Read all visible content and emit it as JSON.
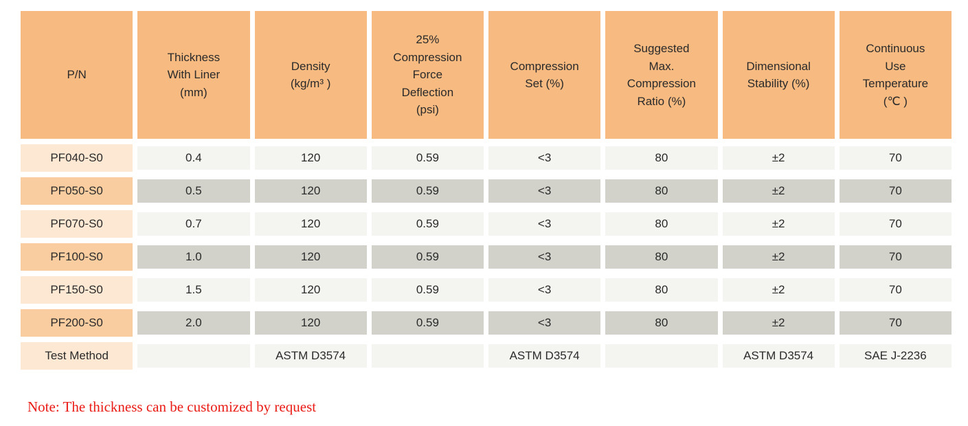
{
  "colors": {
    "page_bg": "#FFFFFF",
    "header_bg": "#F7BA81",
    "pn_odd_bg": "#FDE8D3",
    "pn_even_bg": "#F9CDA0",
    "cell_odd_bg": "#F4F4F0",
    "cell_even_bg": "#D2D2CB",
    "note_red": "#EA1A14",
    "text": "#2A2A2A"
  },
  "table": {
    "headers": [
      {
        "id": "pn",
        "label": "P/N"
      },
      {
        "id": "thickness-with-liner",
        "label": "Thickness\nWith Liner\n(mm)"
      },
      {
        "id": "density",
        "label": "Density\n(kg/m³ )"
      },
      {
        "id": "compression-force-deflection",
        "label": "25%\nCompression\nForce\nDeflection\n(psi)"
      },
      {
        "id": "compression-set",
        "label": "Compression\nSet (%)"
      },
      {
        "id": "suggested-max-compression-ratio",
        "label": "Suggested\nMax.\nCompression\nRatio (%)"
      },
      {
        "id": "dimensional-stability",
        "label": "Dimensional\nStability (%)"
      },
      {
        "id": "continuous-use-temperature",
        "label": "Continuous\nUse\nTemperature\n(℃ )"
      }
    ],
    "rows": [
      {
        "pn": "PF040-S0",
        "shade": "odd",
        "cells": [
          "0.4",
          "120",
          "0.59",
          "<3",
          "80",
          "±2",
          "70"
        ]
      },
      {
        "pn": "PF050-S0",
        "shade": "even",
        "cells": [
          "0.5",
          "120",
          "0.59",
          "<3",
          "80",
          "±2",
          "70"
        ]
      },
      {
        "pn": "PF070-S0",
        "shade": "odd",
        "cells": [
          "0.7",
          "120",
          "0.59",
          "<3",
          "80",
          "±2",
          "70"
        ]
      },
      {
        "pn": "PF100-S0",
        "shade": "even",
        "cells": [
          "1.0",
          "120",
          "0.59",
          "<3",
          "80",
          "±2",
          "70"
        ]
      },
      {
        "pn": "PF150-S0",
        "shade": "odd",
        "cells": [
          "1.5",
          "120",
          "0.59",
          "<3",
          "80",
          "±2",
          "70"
        ]
      },
      {
        "pn": "PF200-S0",
        "shade": "even",
        "cells": [
          "2.0",
          "120",
          "0.59",
          "<3",
          "80",
          "±2",
          "70"
        ]
      },
      {
        "pn": "Test Method",
        "shade": "odd",
        "cells": [
          "",
          "ASTM D3574",
          "",
          "ASTM D3574",
          "",
          "ASTM D3574",
          "SAE J-2236"
        ]
      }
    ]
  },
  "note": "Note: The thickness can be customized by request",
  "chart_data": {
    "type": "table",
    "columns": [
      "P/N",
      "Thickness With Liner (mm)",
      "Density (kg/m³)",
      "25% Compression Force Deflection (psi)",
      "Compression Set (%)",
      "Suggested Max. Compression Ratio (%)",
      "Dimensional Stability (%)",
      "Continuous Use Temperature (℃)"
    ],
    "rows": [
      [
        "PF040-S0",
        "0.4",
        "120",
        "0.59",
        "<3",
        "80",
        "±2",
        "70"
      ],
      [
        "PF050-S0",
        "0.5",
        "120",
        "0.59",
        "<3",
        "80",
        "±2",
        "70"
      ],
      [
        "PF070-S0",
        "0.7",
        "120",
        "0.59",
        "<3",
        "80",
        "±2",
        "70"
      ],
      [
        "PF100-S0",
        "1.0",
        "120",
        "0.59",
        "<3",
        "80",
        "±2",
        "70"
      ],
      [
        "PF150-S0",
        "1.5",
        "120",
        "0.59",
        "<3",
        "80",
        "±2",
        "70"
      ],
      [
        "PF200-S0",
        "2.0",
        "120",
        "0.59",
        "<3",
        "80",
        "±2",
        "70"
      ],
      [
        "Test Method",
        "",
        "ASTM D3574",
        "",
        "ASTM D3574",
        "",
        "ASTM D3574",
        "SAE J-2236"
      ]
    ]
  }
}
